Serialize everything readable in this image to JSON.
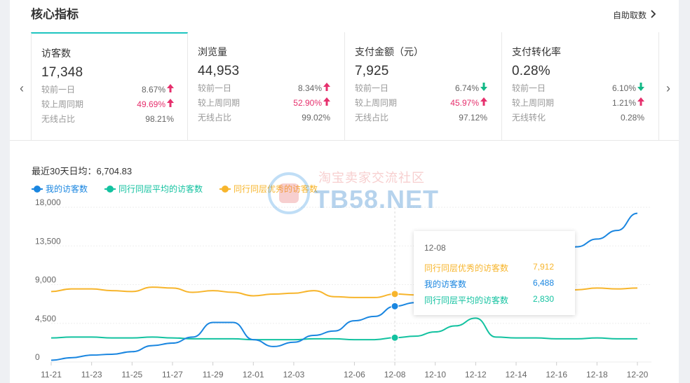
{
  "header": {
    "title": "核心指标",
    "auto_fetch": "自助取数"
  },
  "cards": [
    {
      "name": "访客数",
      "value": "17,348",
      "rows": [
        {
          "label": "较前一日",
          "value": "8.67%",
          "trend": "up",
          "red": false
        },
        {
          "label": "较上周同期",
          "value": "49.69%",
          "trend": "up",
          "red": true
        },
        {
          "label": "无线占比",
          "value": "98.21%",
          "trend": "",
          "red": false
        }
      ]
    },
    {
      "name": "浏览量",
      "value": "44,953",
      "rows": [
        {
          "label": "较前一日",
          "value": "8.34%",
          "trend": "up",
          "red": false
        },
        {
          "label": "较上周同期",
          "value": "52.90%",
          "trend": "up",
          "red": true
        },
        {
          "label": "无线占比",
          "value": "99.02%",
          "trend": "",
          "red": false
        }
      ]
    },
    {
      "name": "支付金额（元）",
      "value": "7,925",
      "rows": [
        {
          "label": "较前一日",
          "value": "6.74%",
          "trend": "down",
          "red": false
        },
        {
          "label": "较上周同期",
          "value": "45.97%",
          "trend": "up",
          "red": true
        },
        {
          "label": "无线占比",
          "value": "97.12%",
          "trend": "",
          "red": false
        }
      ]
    },
    {
      "name": "支付转化率",
      "value": "0.28%",
      "rows": [
        {
          "label": "较前一日",
          "value": "6.10%",
          "trend": "down",
          "red": false
        },
        {
          "label": "较上周同期",
          "value": "1.21%",
          "trend": "up",
          "red": false
        },
        {
          "label": "无线转化",
          "value": "0.28%",
          "trend": "",
          "red": false
        }
      ]
    }
  ],
  "arrows": {
    "left": "‹",
    "right": "›"
  },
  "avg_text": "最近30天日均：6,704.83",
  "watermark": {
    "cn": "淘宝卖家交流社区",
    "en": "TB58.NET"
  },
  "colors": {
    "mine": "#1a86e0",
    "peer_avg": "#13c2a0",
    "peer_top": "#f7b52c",
    "accent": "#1ec5c0",
    "red": "#e6306d",
    "green": "#12b886"
  },
  "chart_data": {
    "type": "line",
    "x": [
      "11-21",
      "11-22",
      "11-23",
      "11-24",
      "11-25",
      "11-26",
      "11-27",
      "11-28",
      "11-29",
      "11-30",
      "12-01",
      "12-02",
      "12-03",
      "12-04",
      "12-05",
      "12-06",
      "12-07",
      "12-08",
      "12-09",
      "12-10",
      "12-11",
      "12-12",
      "12-13",
      "12-14",
      "12-15",
      "12-16",
      "12-17",
      "12-18",
      "12-19",
      "12-20"
    ],
    "tick_labels": [
      "11-21",
      "11-23",
      "11-25",
      "11-27",
      "11-29",
      "12-01",
      "12-03",
      "12-06",
      "12-08",
      "12-10",
      "12-12",
      "12-14",
      "12-16",
      "12-18",
      "12-20"
    ],
    "yticks": [
      "0",
      "4,500",
      "9,000",
      "13,500",
      "18,000"
    ],
    "ylim": [
      0,
      18000
    ],
    "series": [
      {
        "name": "我的访客数",
        "key": "mine",
        "values": [
          200,
          500,
          800,
          900,
          1200,
          1900,
          2200,
          2900,
          4600,
          4600,
          2600,
          1800,
          2300,
          3100,
          3600,
          4800,
          5300,
          6488,
          6900,
          7500,
          8200,
          8900,
          9600,
          10400,
          11300,
          12300,
          13400,
          14300,
          15300,
          17300
        ]
      },
      {
        "name": "同行同层平均的访客数",
        "key": "peer_avg",
        "values": [
          2800,
          2900,
          2900,
          2800,
          2800,
          2900,
          2800,
          2700,
          2700,
          2700,
          2600,
          2600,
          2600,
          2700,
          2700,
          2600,
          2600,
          2830,
          3000,
          3500,
          4200,
          5100,
          2900,
          2800,
          2800,
          2700,
          2700,
          2800,
          2700,
          2700
        ]
      },
      {
        "name": "同行同层优秀的访客数",
        "key": "peer_top",
        "values": [
          8200,
          8500,
          8500,
          8300,
          8200,
          8700,
          8600,
          8100,
          8300,
          8100,
          7700,
          7900,
          8000,
          8300,
          7600,
          7500,
          7500,
          7912,
          7800,
          7700,
          7700,
          7700,
          7800,
          7900,
          8000,
          8200,
          8400,
          8600,
          8500,
          8600
        ]
      }
    ],
    "tooltip": {
      "date": "12-08",
      "rows": [
        {
          "name": "同行同层优秀的访客数",
          "value": "7,912",
          "key": "peer_top"
        },
        {
          "name": "我的访客数",
          "value": "6,488",
          "key": "mine"
        },
        {
          "name": "同行同层平均的访客数",
          "value": "2,830",
          "key": "peer_avg"
        }
      ]
    },
    "highlight_index": 17
  }
}
